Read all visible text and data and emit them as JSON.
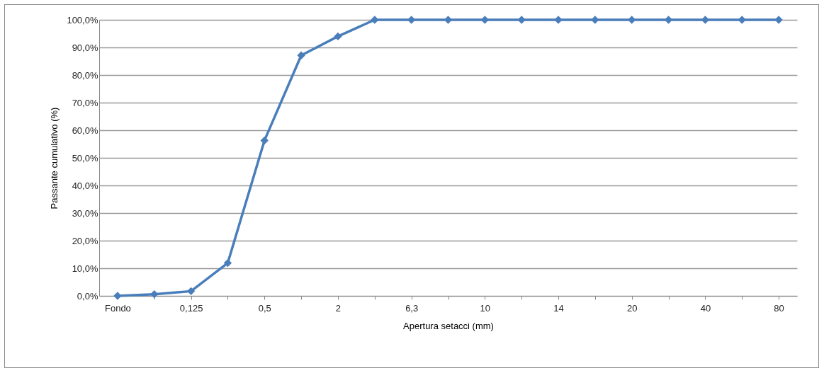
{
  "chart_data": {
    "type": "line",
    "xlabel": "Apertura setacci (mm)",
    "ylabel": "Passante cumulativo (%)",
    "categories": [
      "Fondo",
      null,
      "0,125",
      null,
      "0,5",
      null,
      "2",
      null,
      "6,3",
      null,
      "10",
      null,
      "14",
      null,
      "20",
      null,
      "40",
      null,
      "80"
    ],
    "series": [
      {
        "color": "#4a7ebb",
        "values": [
          0,
          0.6,
          1.7,
          11.9,
          56.3,
          87.1,
          94.0,
          100,
          100,
          100,
          100,
          100,
          100,
          100,
          100,
          100,
          100,
          100,
          100
        ]
      }
    ],
    "ylim": [
      0,
      100
    ],
    "yticks": [
      {
        "value": 0,
        "label": "0,0%"
      },
      {
        "value": 10,
        "label": "10,0%"
      },
      {
        "value": 20,
        "label": "20,0%"
      },
      {
        "value": 30,
        "label": "30,0%"
      },
      {
        "value": 40,
        "label": "40,0%"
      },
      {
        "value": 50,
        "label": "50,0%"
      },
      {
        "value": 60,
        "label": "60,0%"
      },
      {
        "value": 70,
        "label": "70,0%"
      },
      {
        "value": 80,
        "label": "80,0%"
      },
      {
        "value": 90,
        "label": "90,0%"
      },
      {
        "value": 100,
        "label": "100,0%"
      }
    ],
    "grid": "y",
    "marker": "diamond",
    "line_style": "solid"
  }
}
